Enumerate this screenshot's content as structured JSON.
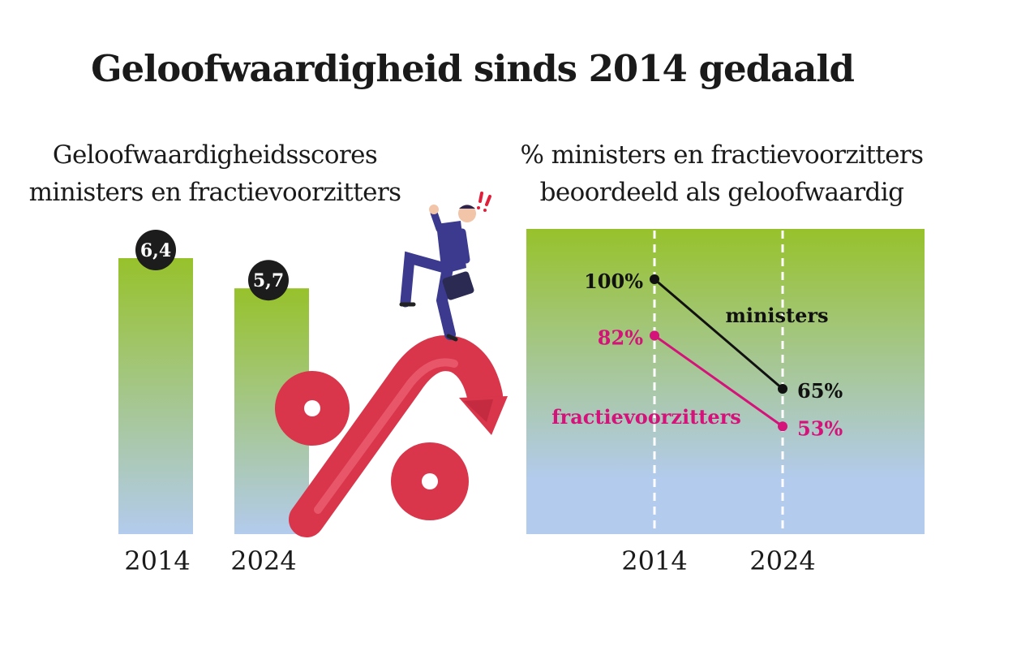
{
  "title": "Geloofwaardigheid sinds 2014 gedaald",
  "chart_data": [
    {
      "type": "bar",
      "title_lines": [
        "Geloofwaardigheidsscores",
        "ministers en fractievoorzitters"
      ],
      "categories": [
        "2014",
        "2024"
      ],
      "values": [
        6.4,
        5.7
      ],
      "value_labels": [
        "6,4",
        "5,7"
      ],
      "colors": {
        "top": "#97c22b",
        "bottom": "#b3cbed"
      }
    },
    {
      "type": "line",
      "title_lines": [
        "% ministers en fractievoorzitters",
        "beoordeeld als geloofwaardig"
      ],
      "x": [
        "2014",
        "2024"
      ],
      "series": [
        {
          "name": "ministers",
          "values": [
            100,
            65
          ],
          "labels": [
            "100%",
            "65%"
          ],
          "color": "#111111"
        },
        {
          "name": "fractievoorzitters",
          "values": [
            82,
            53
          ],
          "labels": [
            "82%",
            "53%"
          ],
          "color": "#d4127a"
        }
      ],
      "background": {
        "top": "#97c22b",
        "bottom": "#b3cbed"
      },
      "grid": "vertical-dashed"
    }
  ],
  "illustration": {
    "name": "falling-percent-arrow-with-businessman",
    "colors": {
      "percent": "#d9354b",
      "suit": "#3b3a8f",
      "skin": "#f2c4a8",
      "exclaim": "#e0203a"
    }
  }
}
